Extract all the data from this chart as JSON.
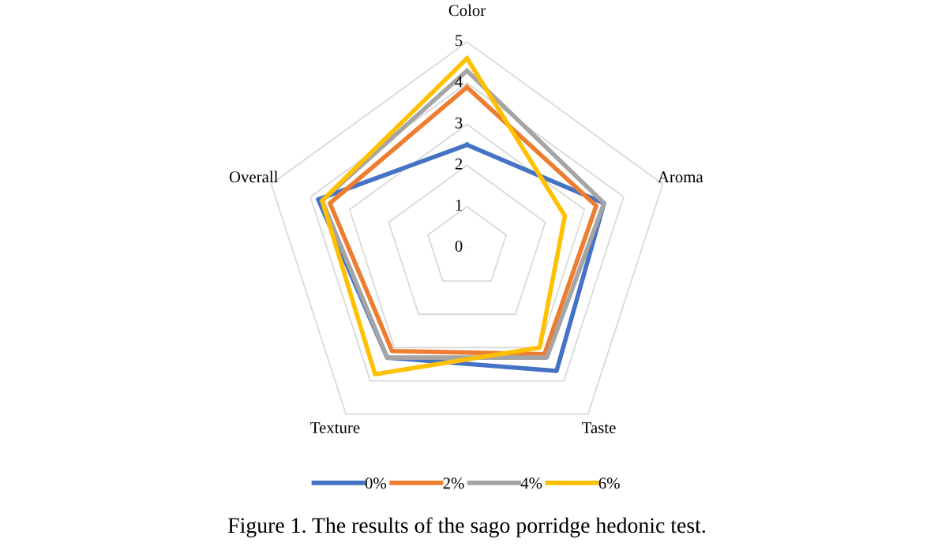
{
  "chart_data": {
    "type": "radar",
    "categories": [
      "Color",
      "Aroma",
      "Taste",
      "Texture",
      "Overall"
    ],
    "series": [
      {
        "name": "0%",
        "color": "#4472c4",
        "values": [
          2.5,
          3.5,
          3.7,
          3.3,
          3.8
        ]
      },
      {
        "name": "2%",
        "color": "#ed7d31",
        "values": [
          3.9,
          3.3,
          3.2,
          3.1,
          3.5
        ]
      },
      {
        "name": "4%",
        "color": "#a5a5a5",
        "values": [
          4.3,
          3.5,
          3.3,
          3.3,
          3.7
        ]
      },
      {
        "name": "6%",
        "color": "#ffc000",
        "values": [
          4.6,
          2.5,
          3.0,
          3.8,
          3.7
        ]
      }
    ],
    "ylim": [
      0,
      5
    ],
    "yticks": [
      0,
      1,
      2,
      3,
      4,
      5
    ],
    "grid": true,
    "legend": "bottom",
    "marker": "none",
    "line_style": "solid",
    "annotations": [
      "Figure 1. The results of the sago porridge hedonic test."
    ]
  }
}
